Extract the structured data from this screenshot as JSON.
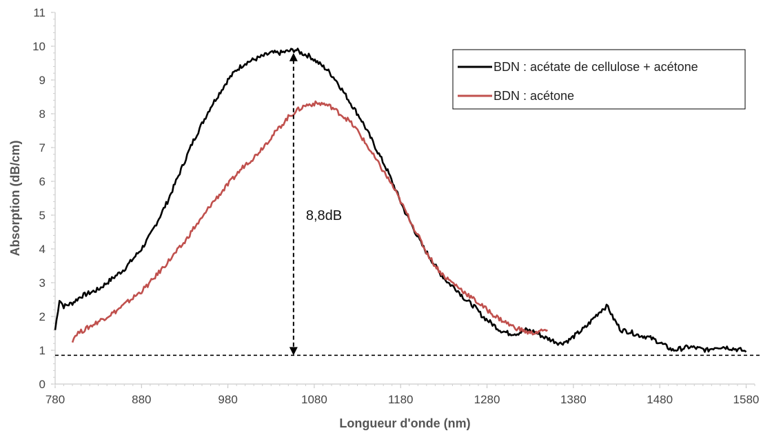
{
  "chart_data": {
    "type": "line",
    "title": "",
    "xlabel": "Longueur d'onde (nm)",
    "ylabel": "Absorption (dB/cm)",
    "xlim": [
      780,
      1590
    ],
    "ylim": [
      0,
      11
    ],
    "xticks": [
      780,
      880,
      980,
      1080,
      1180,
      1280,
      1380,
      1480,
      1580
    ],
    "yticks": [
      0,
      1,
      2,
      3,
      4,
      5,
      6,
      7,
      8,
      9,
      10,
      11
    ],
    "grid": false,
    "legend_position": "top-right",
    "series": [
      {
        "name": "BDN : acétate de cellulose + acétone",
        "color": "#000000",
        "x": [
          780,
          785,
          790,
          800,
          810,
          820,
          830,
          840,
          850,
          860,
          870,
          880,
          890,
          900,
          910,
          920,
          930,
          940,
          950,
          960,
          970,
          980,
          990,
          1000,
          1010,
          1020,
          1030,
          1040,
          1050,
          1058,
          1065,
          1075,
          1085,
          1095,
          1105,
          1115,
          1125,
          1135,
          1145,
          1155,
          1165,
          1175,
          1185,
          1195,
          1205,
          1215,
          1225,
          1235,
          1245,
          1255,
          1265,
          1275,
          1285,
          1295,
          1305,
          1315,
          1325,
          1335,
          1345,
          1355,
          1365,
          1375,
          1385,
          1395,
          1405,
          1415,
          1420,
          1425,
          1435,
          1445,
          1455,
          1465,
          1475,
          1485,
          1495,
          1505,
          1515,
          1525,
          1535,
          1545,
          1555,
          1565,
          1575,
          1580
        ],
        "y": [
          1.6,
          2.5,
          2.3,
          2.4,
          2.6,
          2.7,
          2.8,
          3.0,
          3.2,
          3.4,
          3.7,
          4.0,
          4.4,
          4.9,
          5.4,
          6.0,
          6.6,
          7.2,
          7.7,
          8.2,
          8.6,
          9.0,
          9.3,
          9.5,
          9.6,
          9.7,
          9.8,
          9.8,
          9.85,
          9.9,
          9.8,
          9.7,
          9.5,
          9.3,
          9.0,
          8.6,
          8.2,
          7.8,
          7.3,
          6.8,
          6.3,
          5.7,
          5.1,
          4.6,
          4.1,
          3.7,
          3.3,
          3.0,
          2.8,
          2.5,
          2.3,
          2.0,
          1.8,
          1.6,
          1.5,
          1.5,
          1.6,
          1.55,
          1.4,
          1.3,
          1.2,
          1.3,
          1.5,
          1.7,
          2.0,
          2.25,
          2.3,
          2.0,
          1.6,
          1.55,
          1.45,
          1.4,
          1.3,
          1.15,
          1.0,
          1.05,
          1.1,
          1.05,
          1.0,
          1.1,
          1.1,
          1.05,
          1.0,
          0.95
        ]
      },
      {
        "name": "BDN : acétone",
        "color": "#C0504D",
        "x": [
          800,
          805,
          810,
          820,
          830,
          840,
          850,
          860,
          870,
          880,
          890,
          900,
          910,
          920,
          930,
          940,
          950,
          960,
          970,
          980,
          990,
          1000,
          1010,
          1020,
          1030,
          1040,
          1050,
          1060,
          1070,
          1080,
          1090,
          1100,
          1110,
          1120,
          1130,
          1140,
          1150,
          1160,
          1170,
          1180,
          1190,
          1200,
          1210,
          1220,
          1230,
          1240,
          1250,
          1260,
          1270,
          1280,
          1290,
          1300,
          1310,
          1320,
          1330,
          1340,
          1350
        ],
        "y": [
          1.3,
          1.5,
          1.55,
          1.7,
          1.85,
          2.0,
          2.15,
          2.35,
          2.55,
          2.75,
          3.0,
          3.3,
          3.6,
          3.9,
          4.2,
          4.6,
          4.9,
          5.3,
          5.6,
          5.9,
          6.2,
          6.5,
          6.7,
          7.0,
          7.3,
          7.6,
          7.9,
          8.1,
          8.25,
          8.3,
          8.3,
          8.2,
          8.0,
          7.8,
          7.5,
          7.1,
          6.7,
          6.3,
          5.9,
          5.4,
          4.9,
          4.4,
          3.9,
          3.5,
          3.2,
          3.0,
          2.8,
          2.6,
          2.4,
          2.2,
          2.0,
          1.85,
          1.7,
          1.6,
          1.5,
          1.55,
          1.6
        ]
      }
    ],
    "annotations": [
      {
        "type": "vertical-double-arrow",
        "x": 1056,
        "y_from": 0.85,
        "y_to": 9.8,
        "label": "8,8dB"
      },
      {
        "type": "horizontal-dashed-line",
        "y": 0.85
      }
    ]
  }
}
